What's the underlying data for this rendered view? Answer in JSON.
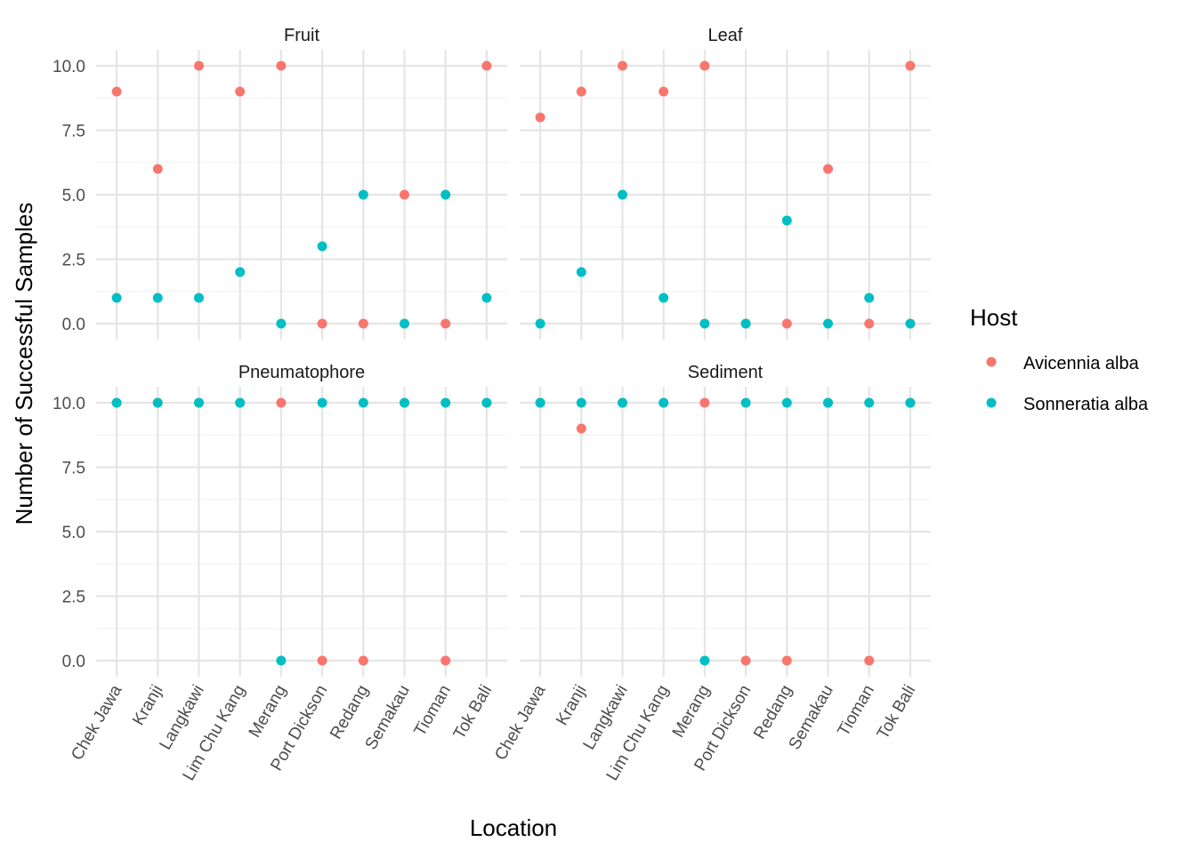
{
  "chart_data": {
    "type": "scatter",
    "xlabel": "Location",
    "ylabel": "Number of Successful Samples",
    "categories": [
      "Chek Jawa",
      "Kranji",
      "Langkawi",
      "Lim Chu Kang",
      "Merang",
      "Port Dickson",
      "Redang",
      "Semakau",
      "Tioman",
      "Tok Bali"
    ],
    "ylim": [
      0,
      10
    ],
    "yticks": [
      "0.0",
      "2.5",
      "5.0",
      "7.5",
      "10.0"
    ],
    "legend": {
      "title": "Host",
      "position": "right",
      "entries": [
        {
          "label": "Avicennia alba",
          "color": "#F8766D"
        },
        {
          "label": "Sonneratia alba",
          "color": "#00BFC4"
        }
      ]
    },
    "grid": true,
    "panels": [
      {
        "title": "Fruit",
        "series": [
          {
            "name": "Avicennia alba",
            "values": [
              9,
              6,
              10,
              9,
              10,
              0,
              0,
              5,
              0,
              10
            ]
          },
          {
            "name": "Sonneratia alba",
            "values": [
              1,
              1,
              1,
              2,
              0,
              3,
              5,
              0,
              5,
              1
            ]
          }
        ]
      },
      {
        "title": "Leaf",
        "series": [
          {
            "name": "Avicennia alba",
            "values": [
              8,
              9,
              10,
              9,
              10,
              0,
              0,
              6,
              0,
              10
            ]
          },
          {
            "name": "Sonneratia alba",
            "values": [
              0,
              2,
              5,
              1,
              0,
              0,
              4,
              0,
              1,
              0
            ]
          }
        ]
      },
      {
        "title": "Pneumatophore",
        "series": [
          {
            "name": "Avicennia alba",
            "values": [
              10,
              10,
              10,
              10,
              10,
              0,
              0,
              10,
              0,
              10
            ]
          },
          {
            "name": "Sonneratia alba",
            "values": [
              10,
              10,
              10,
              10,
              0,
              10,
              10,
              10,
              10,
              10
            ]
          }
        ]
      },
      {
        "title": "Sediment",
        "series": [
          {
            "name": "Avicennia alba",
            "values": [
              10,
              9,
              10,
              10,
              10,
              0,
              0,
              10,
              0,
              10
            ]
          },
          {
            "name": "Sonneratia alba",
            "values": [
              10,
              10,
              10,
              10,
              0,
              10,
              10,
              10,
              10,
              10
            ]
          }
        ]
      }
    ]
  }
}
